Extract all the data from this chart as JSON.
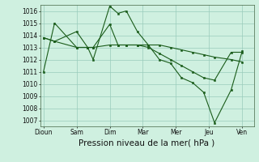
{
  "background_color": "#cff0e0",
  "grid_color": "#99ccbb",
  "line_color": "#1a5c1a",
  "marker_color": "#1a5c1a",
  "xlabel": "Pression niveau de la mer( hPa )",
  "xlabel_fontsize": 7.5,
  "ylim": [
    1006.5,
    1016.5
  ],
  "yticks": [
    1007,
    1008,
    1009,
    1010,
    1011,
    1012,
    1013,
    1014,
    1015,
    1016
  ],
  "xtick_labels": [
    "Dioun",
    "Sam",
    "Dim",
    "Mar",
    "Mer",
    "Jeu",
    "Ven"
  ],
  "xtick_positions": [
    0,
    2,
    4,
    6,
    8,
    10,
    12
  ],
  "series_x": [
    0,
    0.67,
    2,
    2.67,
    3.0,
    4,
    4.5,
    5.0,
    5.67,
    6.33,
    7.0,
    7.67,
    8.33,
    9.0,
    9.67,
    10.33,
    11.33,
    12.0
  ],
  "series": [
    [
      1011.0,
      1015.0,
      1013.0,
      1013.0,
      1012.0,
      1016.4,
      1015.8,
      1016.0,
      1014.3,
      1013.2,
      1012.0,
      1011.7,
      1010.5,
      1010.1,
      1009.3,
      1006.8,
      1009.5,
      1012.7
    ],
    [
      1013.8,
      1013.5,
      1014.3,
      1013.0,
      1013.0,
      1014.9,
      1013.2,
      1013.2,
      1013.2,
      1013.2,
      1013.2,
      1013.0,
      1012.8,
      1012.6,
      1012.4,
      1012.2,
      1012.0,
      1011.8
    ],
    [
      1013.8,
      1013.5,
      1013.0,
      1013.0,
      1013.0,
      1013.2,
      1013.2,
      1013.2,
      1013.2,
      1013.0,
      1012.5,
      1012.0,
      1011.5,
      1011.0,
      1010.5,
      1010.3,
      1012.6,
      1012.6
    ]
  ]
}
